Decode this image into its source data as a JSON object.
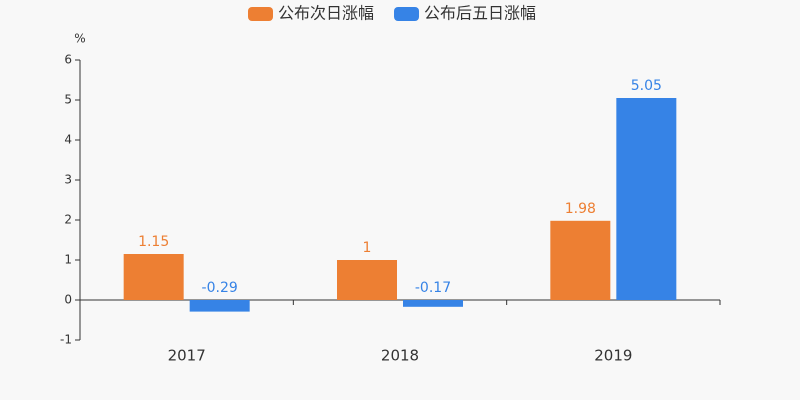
{
  "chart_data": {
    "type": "bar",
    "y_unit": "%",
    "categories": [
      "2017",
      "2018",
      "2019"
    ],
    "series": [
      {
        "name": "公布次日涨幅",
        "color": "#ed7f33",
        "values": [
          1.15,
          1,
          1.98
        ]
      },
      {
        "name": "公布后五日涨幅",
        "color": "#3683e6",
        "values": [
          -0.29,
          -0.17,
          5.05
        ]
      }
    ],
    "ylim": [
      -1,
      6
    ],
    "yticks": [
      -1,
      0,
      1,
      2,
      3,
      4,
      5,
      6
    ],
    "grid": false,
    "legend": "top"
  }
}
